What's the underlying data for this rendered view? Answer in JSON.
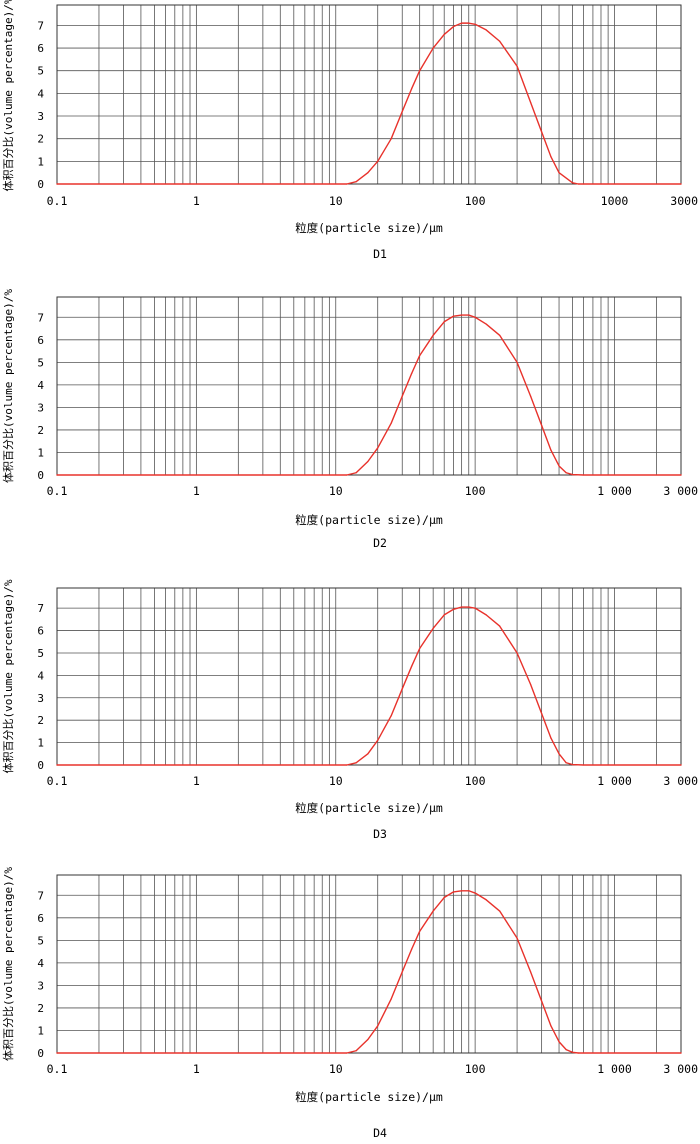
{
  "shared_axes": {
    "ylabel": "体积百分比(volume percentage)/%",
    "xlabel": "粒度(particle size)/μm",
    "y_ticks": [
      "0",
      "1",
      "2",
      "3",
      "4",
      "5",
      "6",
      "7"
    ],
    "x_ticks_d1": [
      "0.1",
      "1",
      "10",
      "100",
      "1000",
      "3000"
    ],
    "x_ticks_other": [
      "0.1",
      "1",
      "10",
      "100",
      "1 000",
      "3 000"
    ]
  },
  "colors": {
    "curve": "#e8322b",
    "grid": "#555555"
  },
  "chart_data": [
    {
      "type": "line",
      "caption": "D1",
      "xscale": "log",
      "xlim": [
        0.1,
        3000
      ],
      "ylim": [
        0,
        7.5
      ],
      "x_tick_values": [
        0.1,
        1,
        10,
        100,
        1000,
        3000
      ],
      "x_tick_labels": [
        "0.1",
        "1",
        "10",
        "100",
        "1000",
        "3000"
      ],
      "y_tick_values": [
        0,
        1,
        2,
        3,
        4,
        5,
        6,
        7
      ],
      "grid": true,
      "series": [
        {
          "x": [
            0.1,
            12,
            14,
            17,
            20,
            25,
            30,
            35,
            40,
            50,
            60,
            70,
            80,
            90,
            100,
            120,
            150,
            200,
            250,
            300,
            350,
            400,
            500,
            550,
            600,
            3000
          ],
          "y": [
            0,
            0,
            0.1,
            0.5,
            1.0,
            2.0,
            3.2,
            4.2,
            5.0,
            6.0,
            6.6,
            6.95,
            7.1,
            7.1,
            7.05,
            6.8,
            6.3,
            5.2,
            3.6,
            2.3,
            1.2,
            0.5,
            0.05,
            0,
            0,
            0
          ]
        }
      ]
    },
    {
      "type": "line",
      "caption": "D2",
      "xscale": "log",
      "xlim": [
        0.1,
        3000
      ],
      "ylim": [
        0,
        7.5
      ],
      "x_tick_values": [
        0.1,
        1,
        10,
        100,
        1000,
        3000
      ],
      "x_tick_labels": [
        "0.1",
        "1",
        "10",
        "100",
        "1 000",
        "3 000"
      ],
      "y_tick_values": [
        0,
        1,
        2,
        3,
        4,
        5,
        6,
        7
      ],
      "grid": true,
      "series": [
        {
          "x": [
            0.1,
            12,
            14,
            17,
            20,
            25,
            30,
            35,
            40,
            50,
            60,
            70,
            80,
            90,
            100,
            120,
            150,
            200,
            250,
            300,
            350,
            400,
            450,
            500,
            600,
            3000
          ],
          "y": [
            0,
            0,
            0.1,
            0.6,
            1.2,
            2.3,
            3.5,
            4.5,
            5.3,
            6.2,
            6.8,
            7.05,
            7.1,
            7.1,
            7.0,
            6.7,
            6.2,
            5.0,
            3.5,
            2.2,
            1.1,
            0.4,
            0.1,
            0.02,
            0,
            0
          ]
        }
      ]
    },
    {
      "type": "line",
      "caption": "D3",
      "xscale": "log",
      "xlim": [
        0.1,
        3000
      ],
      "ylim": [
        0,
        7.5
      ],
      "x_tick_values": [
        0.1,
        1,
        10,
        100,
        1000,
        3000
      ],
      "x_tick_labels": [
        "0.1",
        "1",
        "10",
        "100",
        "1 000",
        "3 000"
      ],
      "y_tick_values": [
        0,
        1,
        2,
        3,
        4,
        5,
        6,
        7
      ],
      "grid": true,
      "series": [
        {
          "x": [
            0.1,
            12,
            14,
            17,
            20,
            25,
            30,
            35,
            40,
            50,
            60,
            70,
            80,
            90,
            100,
            120,
            150,
            200,
            250,
            300,
            350,
            400,
            450,
            500,
            600,
            3000
          ],
          "y": [
            0,
            0,
            0.1,
            0.5,
            1.1,
            2.2,
            3.4,
            4.4,
            5.2,
            6.1,
            6.7,
            6.95,
            7.05,
            7.05,
            7.0,
            6.7,
            6.2,
            5.0,
            3.6,
            2.3,
            1.2,
            0.5,
            0.1,
            0.02,
            0,
            0
          ]
        }
      ]
    },
    {
      "type": "line",
      "caption": "D4",
      "xscale": "log",
      "xlim": [
        0.1,
        3000
      ],
      "ylim": [
        0,
        7.5
      ],
      "x_tick_values": [
        0.1,
        1,
        10,
        100,
        1000,
        3000
      ],
      "x_tick_labels": [
        "0.1",
        "1",
        "10",
        "100",
        "1 000",
        "3 000"
      ],
      "y_tick_values": [
        0,
        1,
        2,
        3,
        4,
        5,
        6,
        7
      ],
      "grid": true,
      "series": [
        {
          "x": [
            0.1,
            12,
            14,
            17,
            20,
            25,
            30,
            35,
            40,
            50,
            60,
            70,
            80,
            90,
            100,
            120,
            150,
            200,
            250,
            300,
            350,
            400,
            450,
            500,
            550,
            3000
          ],
          "y": [
            0,
            0,
            0.1,
            0.6,
            1.2,
            2.4,
            3.6,
            4.6,
            5.4,
            6.3,
            6.9,
            7.15,
            7.2,
            7.2,
            7.1,
            6.8,
            6.3,
            5.1,
            3.6,
            2.3,
            1.2,
            0.5,
            0.15,
            0.03,
            0,
            0
          ]
        }
      ]
    }
  ]
}
